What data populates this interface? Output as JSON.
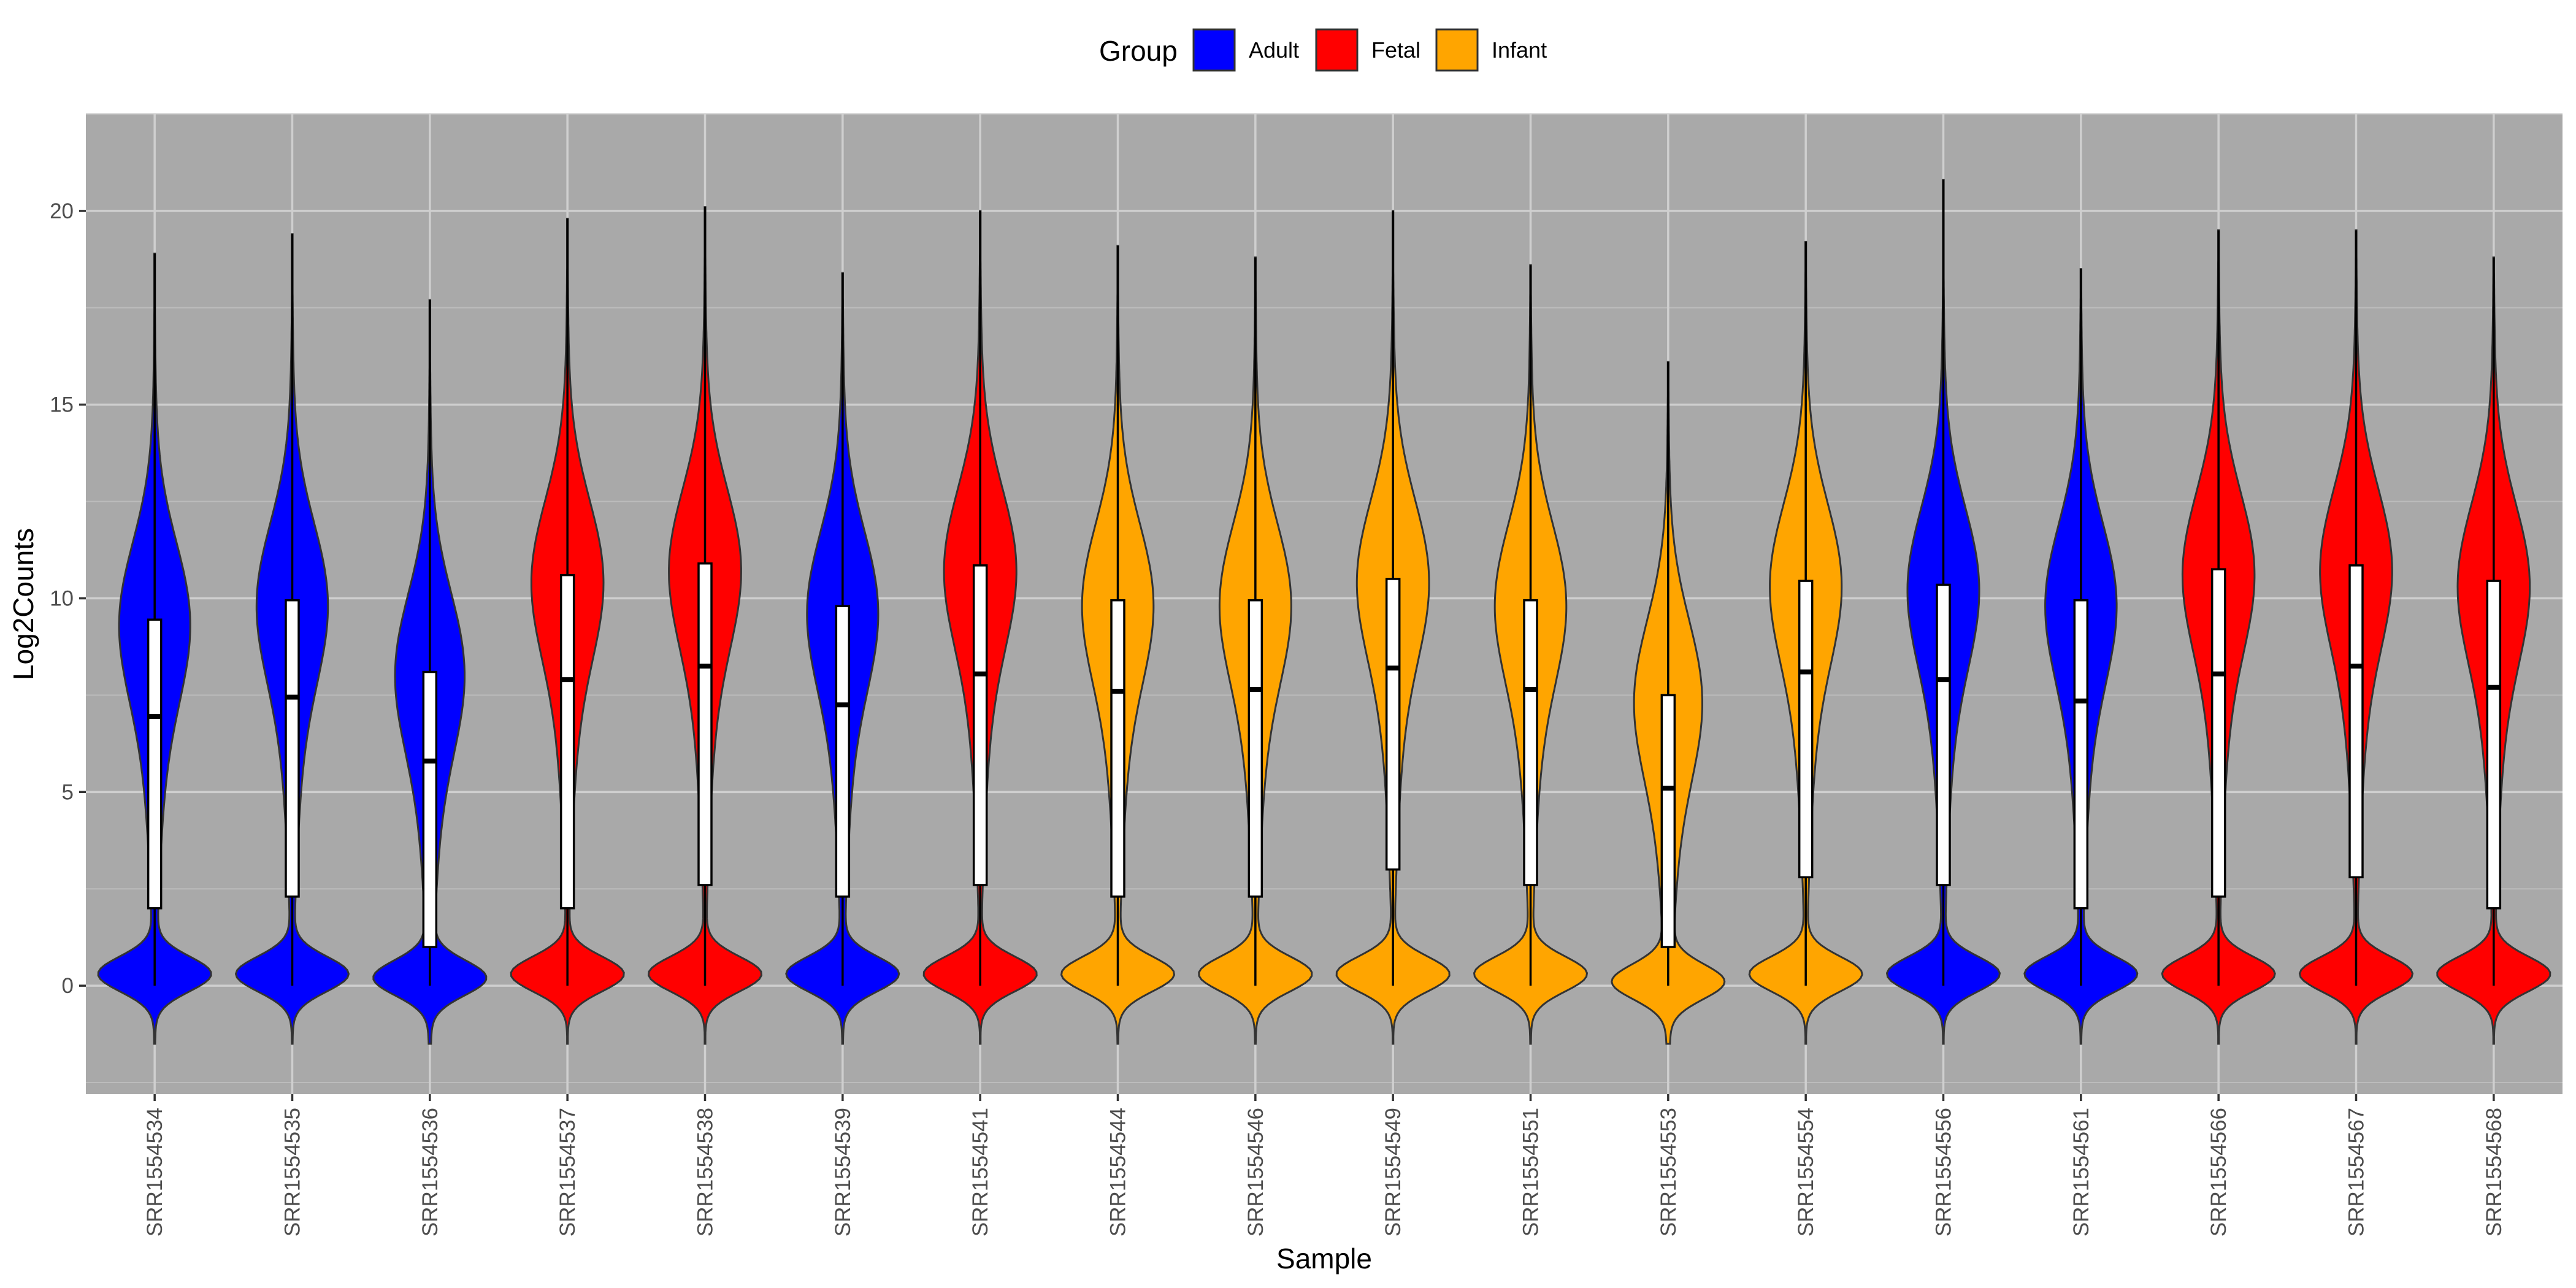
{
  "chart_data": {
    "type": "violin",
    "xlabel": "Sample",
    "ylabel": "Log2Counts",
    "ylim": [
      -2.8,
      22.5
    ],
    "yticks": [
      0,
      5,
      10,
      15,
      20
    ],
    "grid": true,
    "panel_background": "#a9a9a9",
    "legend": {
      "title": "Group",
      "position": "top",
      "entries": [
        {
          "name": "Adult",
          "color": "#0000ff"
        },
        {
          "name": "Fetal",
          "color": "#ff0000"
        },
        {
          "name": "Infant",
          "color": "#ffa500"
        }
      ]
    },
    "samples": [
      {
        "name": "SRR1554534",
        "group": "Adult",
        "q1": 2.0,
        "median": 6.95,
        "q3": 9.45,
        "whisker_low": 0,
        "max": 18.9,
        "upper_peak": 9.5,
        "zero_peak": 0.3
      },
      {
        "name": "SRR1554535",
        "group": "Adult",
        "q1": 2.3,
        "median": 7.45,
        "q3": 9.95,
        "whisker_low": 0,
        "max": 19.4,
        "upper_peak": 10.0,
        "zero_peak": 0.3
      },
      {
        "name": "SRR1554536",
        "group": "Adult",
        "q1": 1.0,
        "median": 5.8,
        "q3": 8.1,
        "whisker_low": 0,
        "max": 17.7,
        "upper_peak": 8.2,
        "zero_peak": 0.2
      },
      {
        "name": "SRR1554537",
        "group": "Fetal",
        "q1": 2.0,
        "median": 7.9,
        "q3": 10.6,
        "whisker_low": 0,
        "max": 19.8,
        "upper_peak": 10.6,
        "zero_peak": 0.3
      },
      {
        "name": "SRR1554538",
        "group": "Fetal",
        "q1": 2.6,
        "median": 8.25,
        "q3": 10.9,
        "whisker_low": 0,
        "max": 20.1,
        "upper_peak": 10.9,
        "zero_peak": 0.3
      },
      {
        "name": "SRR1554539",
        "group": "Adult",
        "q1": 2.3,
        "median": 7.25,
        "q3": 9.8,
        "whisker_low": 0,
        "max": 18.4,
        "upper_peak": 9.8,
        "zero_peak": 0.3
      },
      {
        "name": "SRR1554541",
        "group": "Fetal",
        "q1": 2.6,
        "median": 8.05,
        "q3": 10.85,
        "whisker_low": 0,
        "max": 20.0,
        "upper_peak": 10.9,
        "zero_peak": 0.3
      },
      {
        "name": "SRR1554544",
        "group": "Infant",
        "q1": 2.3,
        "median": 7.6,
        "q3": 9.95,
        "whisker_low": 0,
        "max": 19.1,
        "upper_peak": 10.0,
        "zero_peak": 0.3
      },
      {
        "name": "SRR1554546",
        "group": "Infant",
        "q1": 2.3,
        "median": 7.65,
        "q3": 9.95,
        "whisker_low": 0,
        "max": 18.8,
        "upper_peak": 10.0,
        "zero_peak": 0.3
      },
      {
        "name": "SRR1554549",
        "group": "Infant",
        "q1": 3.0,
        "median": 8.2,
        "q3": 10.5,
        "whisker_low": 0,
        "max": 20.0,
        "upper_peak": 10.6,
        "zero_peak": 0.3
      },
      {
        "name": "SRR1554551",
        "group": "Infant",
        "q1": 2.6,
        "median": 7.65,
        "q3": 9.95,
        "whisker_low": 0,
        "max": 18.6,
        "upper_peak": 10.0,
        "zero_peak": 0.3
      },
      {
        "name": "SRR1554553",
        "group": "Infant",
        "q1": 1.0,
        "median": 5.1,
        "q3": 7.5,
        "whisker_low": 0,
        "max": 16.1,
        "upper_peak": 7.5,
        "zero_peak": 0.1
      },
      {
        "name": "SRR1554554",
        "group": "Infant",
        "q1": 2.8,
        "median": 8.1,
        "q3": 10.45,
        "whisker_low": 0,
        "max": 19.2,
        "upper_peak": 10.5,
        "zero_peak": 0.3
      },
      {
        "name": "SRR1554556",
        "group": "Adult",
        "q1": 2.6,
        "median": 7.9,
        "q3": 10.35,
        "whisker_low": 0,
        "max": 20.8,
        "upper_peak": 10.4,
        "zero_peak": 0.3
      },
      {
        "name": "SRR1554561",
        "group": "Adult",
        "q1": 2.0,
        "median": 7.35,
        "q3": 9.95,
        "whisker_low": 0,
        "max": 18.5,
        "upper_peak": 10.0,
        "zero_peak": 0.3
      },
      {
        "name": "SRR1554566",
        "group": "Fetal",
        "q1": 2.3,
        "median": 8.05,
        "q3": 10.75,
        "whisker_low": 0,
        "max": 19.5,
        "upper_peak": 10.8,
        "zero_peak": 0.3
      },
      {
        "name": "SRR1554567",
        "group": "Fetal",
        "q1": 2.8,
        "median": 8.25,
        "q3": 10.85,
        "whisker_low": 0,
        "max": 19.5,
        "upper_peak": 10.9,
        "zero_peak": 0.3
      },
      {
        "name": "SRR1554568",
        "group": "Fetal",
        "q1": 2.0,
        "median": 7.7,
        "q3": 10.45,
        "whisker_low": 0,
        "max": 18.8,
        "upper_peak": 10.5,
        "zero_peak": 0.3
      }
    ]
  }
}
